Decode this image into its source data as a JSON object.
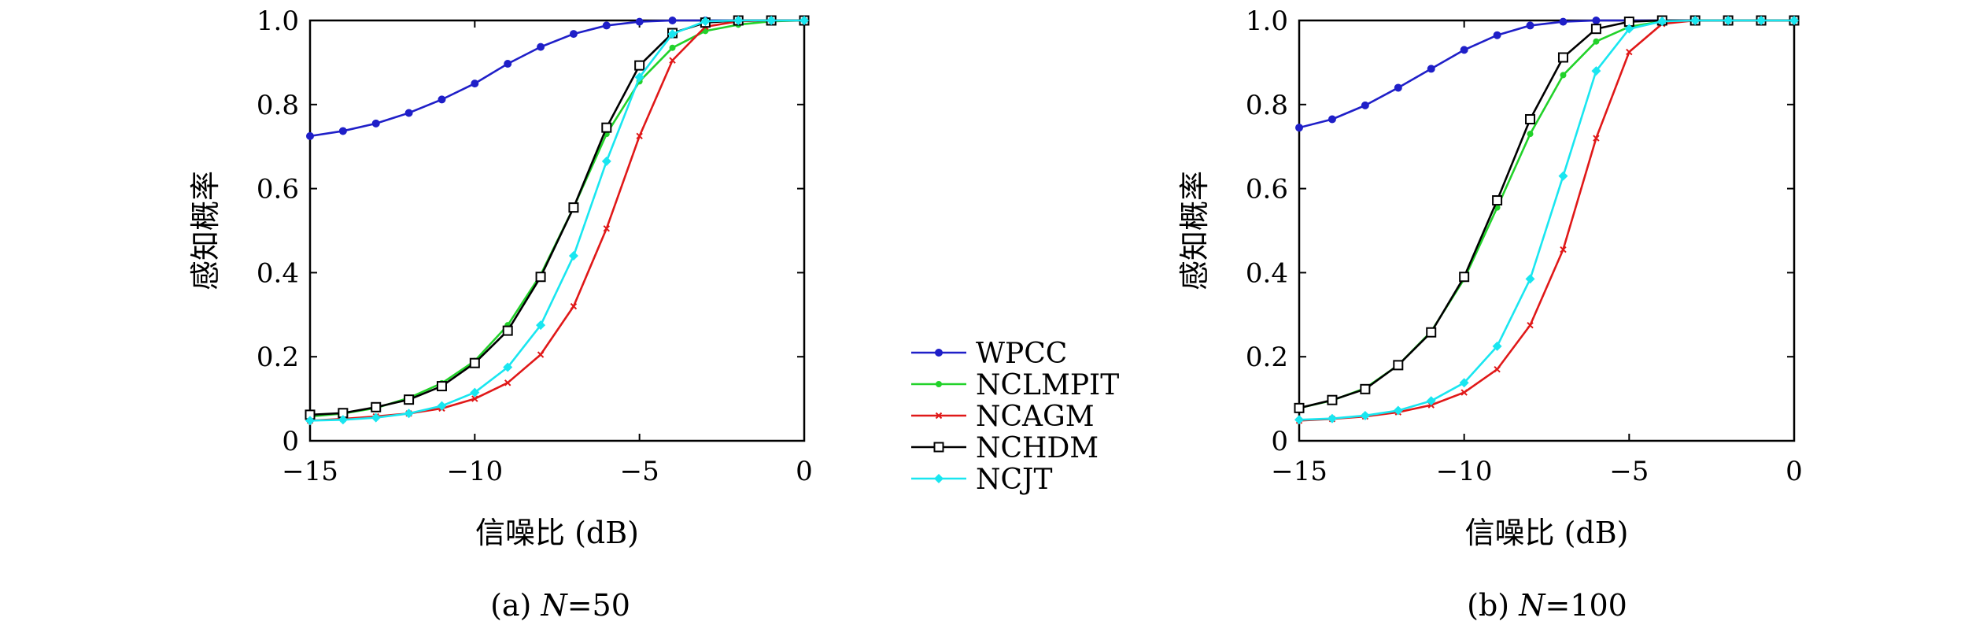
{
  "colors": {
    "WPCC": "#1f1fc8",
    "NCLMPIT": "#22d22a",
    "NCAGM": "#e01818",
    "NCHDM": "#000000",
    "NCJT": "#19e6f0"
  },
  "markers": {
    "WPCC": "circle",
    "NCLMPIT": "dot",
    "NCAGM": "x",
    "NCHDM": "square",
    "NCJT": "diamond"
  },
  "legend": {
    "placement": "between-panels",
    "entries": [
      "WPCC",
      "NCLMPIT",
      "NCAGM",
      "NCHDM",
      "NCJT"
    ]
  },
  "chart_data": [
    {
      "type": "line",
      "caption": {
        "prefix": "(a) ",
        "var": "N",
        "suffix": "=50"
      },
      "xlabel": "信噪比 (dB)",
      "ylabel": "感知概率",
      "xlim": [
        -15,
        0
      ],
      "ylim": [
        0,
        1
      ],
      "xticks": [
        -15,
        -10,
        -5,
        0
      ],
      "xtick_labels": [
        "−15",
        "−10",
        "−5",
        "0"
      ],
      "yticks": [
        0,
        0.2,
        0.4,
        0.6,
        0.8,
        1.0
      ],
      "ytick_labels": [
        "0",
        "0.2",
        "0.4",
        "0.6",
        "0.8",
        "1.0"
      ],
      "grid": false,
      "x": [
        -15,
        -14,
        -13,
        -12,
        -11,
        -10,
        -9,
        -8,
        -7,
        -6,
        -5,
        -4,
        -3,
        -2,
        -1,
        0
      ],
      "series": [
        {
          "name": "WPCC",
          "values": [
            0.725,
            0.737,
            0.755,
            0.78,
            0.812,
            0.85,
            0.897,
            0.937,
            0.968,
            0.988,
            0.997,
            1.0,
            1.0,
            1.0,
            1.0,
            1.0
          ]
        },
        {
          "name": "NCLMPIT",
          "values": [
            0.058,
            0.065,
            0.078,
            0.102,
            0.137,
            0.19,
            0.275,
            0.395,
            0.555,
            0.73,
            0.855,
            0.935,
            0.975,
            0.99,
            0.998,
            1.0
          ]
        },
        {
          "name": "NCAGM",
          "values": [
            0.048,
            0.052,
            0.058,
            0.065,
            0.077,
            0.1,
            0.138,
            0.205,
            0.32,
            0.505,
            0.725,
            0.905,
            0.985,
            0.998,
            1.0,
            1.0
          ]
        },
        {
          "name": "NCHDM",
          "values": [
            0.062,
            0.066,
            0.08,
            0.098,
            0.13,
            0.185,
            0.262,
            0.39,
            0.555,
            0.745,
            0.893,
            0.97,
            0.995,
            1.0,
            1.0,
            1.0
          ]
        },
        {
          "name": "NCJT",
          "values": [
            0.048,
            0.05,
            0.055,
            0.065,
            0.083,
            0.115,
            0.175,
            0.275,
            0.44,
            0.665,
            0.865,
            0.968,
            0.998,
            1.0,
            1.0,
            1.0
          ]
        }
      ]
    },
    {
      "type": "line",
      "caption": {
        "prefix": "(b) ",
        "var": "N",
        "suffix": "=100"
      },
      "xlabel": "信噪比 (dB)",
      "ylabel": "感知概率",
      "xlim": [
        -15,
        0
      ],
      "ylim": [
        0,
        1
      ],
      "xticks": [
        -15,
        -10,
        -5,
        0
      ],
      "xtick_labels": [
        "−15",
        "−10",
        "−5",
        "0"
      ],
      "yticks": [
        0,
        0.2,
        0.4,
        0.6,
        0.8,
        1.0
      ],
      "ytick_labels": [
        "0",
        "0.2",
        "0.4",
        "0.6",
        "0.8",
        "1.0"
      ],
      "grid": false,
      "x": [
        -15,
        -14,
        -13,
        -12,
        -11,
        -10,
        -9,
        -8,
        -7,
        -6,
        -5,
        -4,
        -3,
        -2,
        -1,
        0
      ],
      "series": [
        {
          "name": "WPCC",
          "values": [
            0.745,
            0.765,
            0.798,
            0.84,
            0.885,
            0.93,
            0.965,
            0.988,
            0.997,
            1.0,
            1.0,
            1.0,
            1.0,
            1.0,
            1.0,
            1.0
          ]
        },
        {
          "name": "NCLMPIT",
          "values": [
            0.078,
            0.096,
            0.125,
            0.18,
            0.26,
            0.385,
            0.555,
            0.73,
            0.87,
            0.95,
            0.985,
            0.998,
            1.0,
            1.0,
            1.0,
            1.0
          ]
        },
        {
          "name": "NCAGM",
          "values": [
            0.048,
            0.052,
            0.058,
            0.068,
            0.085,
            0.115,
            0.17,
            0.275,
            0.455,
            0.72,
            0.925,
            0.992,
            1.0,
            1.0,
            1.0,
            1.0
          ]
        },
        {
          "name": "NCHDM",
          "values": [
            0.078,
            0.097,
            0.123,
            0.18,
            0.258,
            0.39,
            0.572,
            0.765,
            0.912,
            0.98,
            0.997,
            1.0,
            1.0,
            1.0,
            1.0,
            1.0
          ]
        },
        {
          "name": "NCJT",
          "values": [
            0.05,
            0.053,
            0.06,
            0.072,
            0.095,
            0.138,
            0.225,
            0.385,
            0.63,
            0.88,
            0.98,
            0.998,
            1.0,
            1.0,
            1.0,
            1.0
          ]
        }
      ]
    }
  ]
}
